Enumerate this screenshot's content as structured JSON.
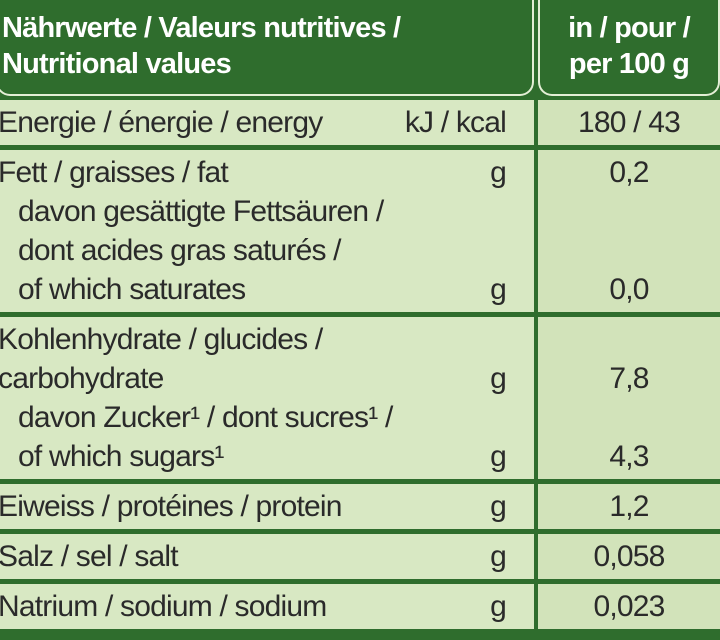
{
  "header": {
    "label_lines": [
      "Nährwerte / Valeurs nutritives /",
      "Nutritional values"
    ],
    "column_lines": [
      "in / pour /",
      "per 100 g"
    ]
  },
  "rows": [
    {
      "lines": [
        {
          "text": "Energie / énergie / energy",
          "unit": "kJ / kcal",
          "value": "180 / 43"
        }
      ]
    },
    {
      "lines": [
        {
          "text": "Fett / graisses / fat",
          "unit": "g",
          "value": "0,2"
        },
        {
          "text": "davon gesättigte Fettsäuren /",
          "indent": true
        },
        {
          "text": "dont acides gras saturés /",
          "indent": true
        },
        {
          "text": "of which saturates",
          "indent": true,
          "unit": "g",
          "value": "0,0"
        }
      ]
    },
    {
      "lines": [
        {
          "text": "Kohlenhydrate / glucides /"
        },
        {
          "text": "carbohydrate",
          "unit": "g",
          "value": "7,8"
        },
        {
          "text": "davon Zucker¹ / dont sucres¹ /",
          "indent": true
        },
        {
          "text": "of which sugars¹",
          "indent": true,
          "unit": "g",
          "value": "4,3"
        }
      ]
    },
    {
      "lines": [
        {
          "text": "Eiweiss / protéines / protein",
          "unit": "g",
          "value": "1,2"
        }
      ]
    },
    {
      "lines": [
        {
          "text": "Salz / sel / salt",
          "unit": "g",
          "value": "0,058"
        }
      ]
    },
    {
      "lines": [
        {
          "text": "Natrium / sodium / sodium",
          "unit": "g",
          "value": "0,023"
        }
      ]
    }
  ]
}
